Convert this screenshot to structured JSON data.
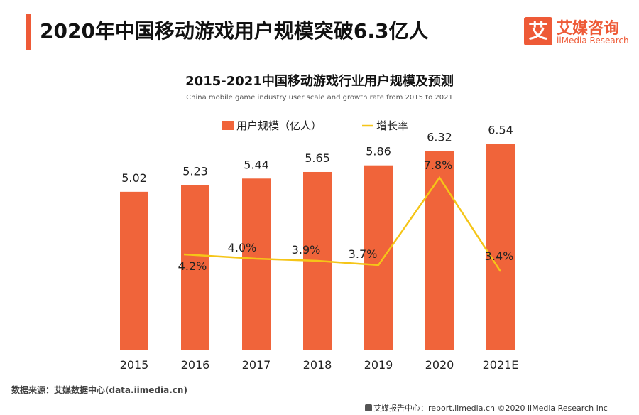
{
  "header": {
    "title": "2020年中国移动游戏用户规模突破6.3亿人",
    "accent_color": "#ee5a37"
  },
  "logo": {
    "mark": "艾",
    "cn": "艾媒咨询",
    "en": "iiMedia Research"
  },
  "chart_data": {
    "type": "bar",
    "title": "2015-2021中国移动游戏行业用户规模及预测",
    "subtitle": "China mobile game industry user scale and growth rate from 2015 to 2021",
    "categories": [
      "2015",
      "2016",
      "2017",
      "2018",
      "2019",
      "2020",
      "2021E"
    ],
    "series": [
      {
        "name": "用户规模（亿人）",
        "kind": "bar",
        "color": "#f0643a",
        "values": [
          5.02,
          5.23,
          5.44,
          5.65,
          5.86,
          6.32,
          6.54
        ],
        "labels": [
          "5.02",
          "5.23",
          "5.44",
          "5.65",
          "5.86",
          "6.32",
          "6.54"
        ]
      },
      {
        "name": "增长率",
        "kind": "line",
        "color": "#f5c518",
        "values": [
          null,
          4.2,
          4.0,
          3.9,
          3.7,
          7.8,
          3.4
        ],
        "labels": [
          "",
          "4.2%",
          "4.0%",
          "3.9%",
          "3.7%",
          "7.8%",
          "3.4%"
        ]
      }
    ],
    "ylim": [
      0,
      7
    ],
    "ylim_rate": [
      0,
      9
    ],
    "grid": false,
    "legend": "top"
  },
  "source": "数据来源：艾媒数据中心(data.iimedia.cn)",
  "footer": "艾媒报告中心：report.iimedia.cn   ©2020  iiMedia Research  Inc"
}
